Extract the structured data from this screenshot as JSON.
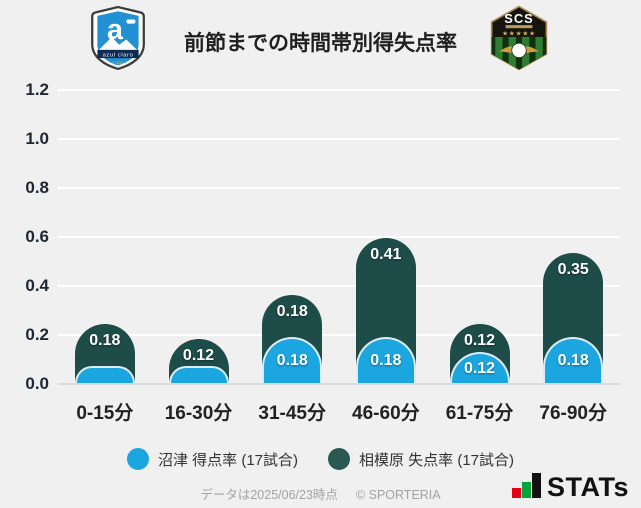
{
  "header": {
    "title": "前節までの時間帯別得失点率",
    "home_crest": {
      "team": "沼津",
      "banner": "azul claro",
      "year": "1990",
      "letter": "a"
    },
    "away_crest": {
      "team": "相模原",
      "abbr": "SCS",
      "stars": "★★★★★"
    }
  },
  "chart_data": {
    "type": "bar",
    "stacked": true,
    "title": "前節までの時間帯別得失点率",
    "categories": [
      "0-15分",
      "16-30分",
      "31-45分",
      "46-60分",
      "61-75分",
      "76-90分"
    ],
    "series": [
      {
        "name": "沼津 得点率 (17試合)",
        "color": "#1ca6e0",
        "values": [
          0.06,
          0.06,
          0.18,
          0.18,
          0.12,
          0.18
        ],
        "labels": [
          "",
          "",
          "0.18",
          "0.18",
          "0.12",
          "0.18"
        ]
      },
      {
        "name": "相模原 失点率 (17試合)",
        "color": "#1e4c48",
        "values": [
          0.18,
          0.12,
          0.18,
          0.41,
          0.12,
          0.35
        ],
        "labels": [
          "0.18",
          "0.12",
          "0.18",
          "0.41",
          "0.12",
          "0.35"
        ]
      }
    ],
    "y_ticks": [
      "1.2",
      "1.0",
      "0.8",
      "0.6",
      "0.4",
      "0.2",
      "0.0"
    ],
    "ylim": [
      0,
      1.2
    ],
    "grid": true,
    "legend_position": "bottom"
  },
  "legend": [
    {
      "label": "沼津 得点率 (17試合)",
      "color": "#1ca6e0"
    },
    {
      "label": "相模原 失点率 (17試合)",
      "color": "#2a5954"
    }
  ],
  "footer": {
    "data_note": "データは2025/06/23時点",
    "copyright": "© SPORTERIA",
    "brand": "STATs"
  }
}
